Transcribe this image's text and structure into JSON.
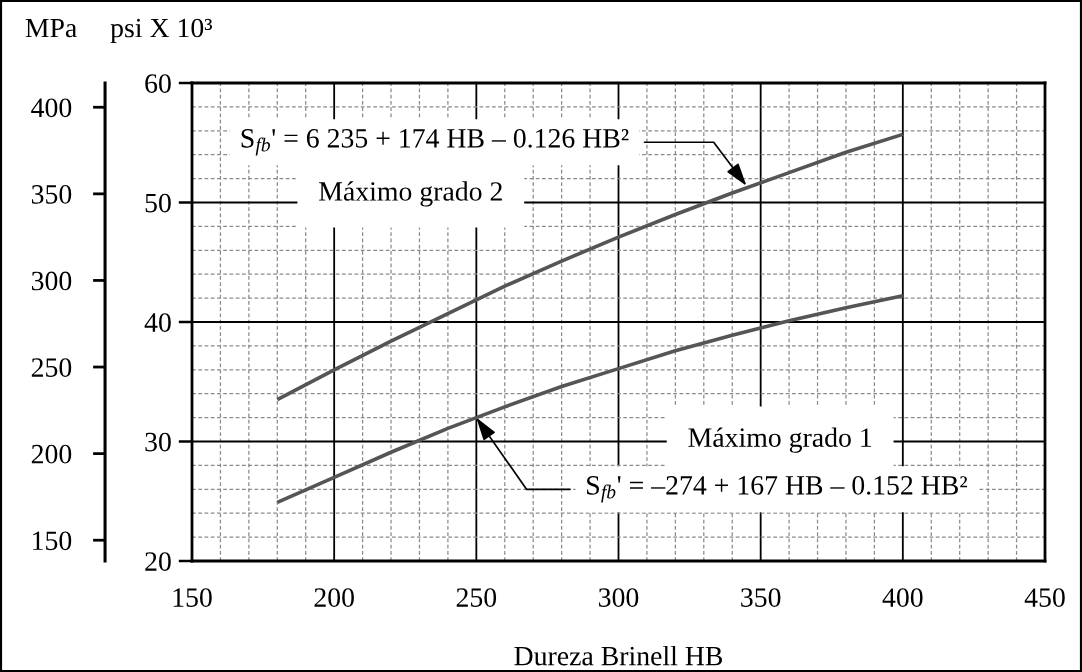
{
  "chart_data": {
    "type": "line",
    "xlabel": "Dureza Brinell HB",
    "ylabel": "psi X 10³",
    "y2label": "MPa",
    "x": [
      180,
      200,
      220,
      240,
      260,
      280,
      300,
      320,
      340,
      360,
      380,
      400
    ],
    "series": [
      {
        "name": "Máximo grado 2",
        "color": "#555555",
        "values": [
          33.5,
          36.0,
          38.4,
          40.7,
          43.0,
          45.1,
          47.1,
          49.0,
          50.8,
          52.5,
          54.2,
          55.7
        ]
      },
      {
        "name": "Máximo grado 1",
        "color": "#555555",
        "values": [
          24.9,
          27.0,
          29.1,
          31.1,
          32.9,
          34.6,
          36.1,
          37.6,
          38.9,
          40.1,
          41.2,
          42.2
        ]
      }
    ],
    "annotations": [
      {
        "text": "S$_{fb}$' = 6 235 + 174 HB – 0.126 HB²",
        "x": 345,
        "y": 51.4
      },
      {
        "text": "S$_{fb}$' = –274 + 167 HB – 0.152 HB²",
        "x": 250,
        "y": 32.0
      }
    ],
    "xlim": [
      150,
      450
    ],
    "xticks": [
      150,
      200,
      250,
      300,
      350,
      400,
      450
    ],
    "ylim": [
      20,
      60
    ],
    "yticks": [
      20,
      30,
      40,
      50,
      60
    ],
    "y2lim": [
      138,
      414
    ],
    "y2ticks": [
      150,
      200,
      250,
      300,
      350,
      400
    ],
    "grid": true
  }
}
